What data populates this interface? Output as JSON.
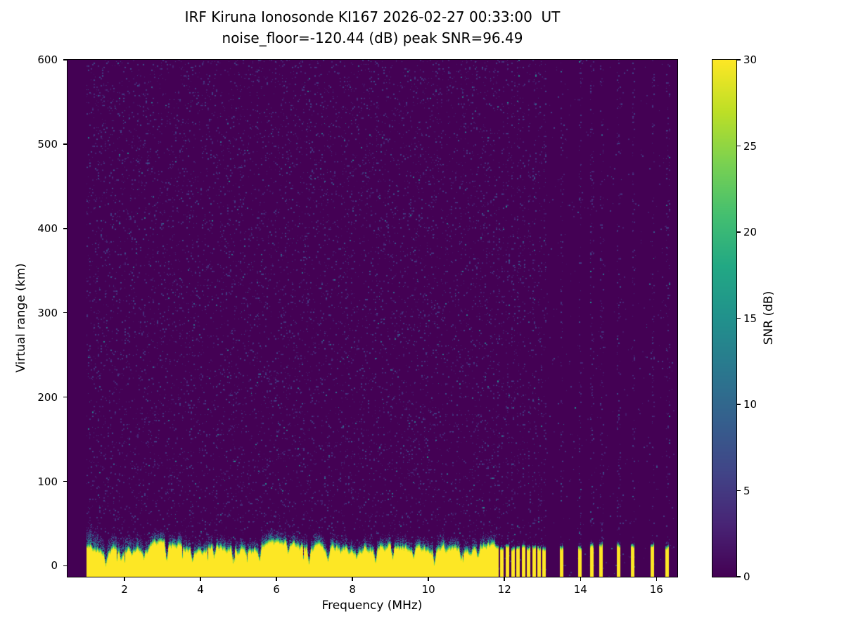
{
  "title_line1": "IRF Kiruna Ionosonde KI167 2026-02-27 00:33:00  UT",
  "title_line2": "noise_floor=-120.44 (dB) peak SNR=96.49",
  "axes": {
    "xlabel": "Frequency (MHz)",
    "ylabel": "Virtual range (km)",
    "xticks": [
      2,
      4,
      6,
      8,
      10,
      12,
      14,
      16
    ],
    "yticks": [
      0,
      100,
      200,
      300,
      400,
      500,
      600
    ]
  },
  "colorbar": {
    "label": "SNR (dB)",
    "min": 0,
    "max": 30,
    "ticks": [
      0,
      5,
      10,
      15,
      20,
      25,
      30
    ]
  },
  "chart_data": {
    "type": "heatmap",
    "title": "IRF Kiruna Ionosonde KI167 2026-02-27 00:33:00  UT",
    "subtitle": "noise_floor=-120.44 (dB) peak SNR=96.49",
    "xlabel": "Frequency (MHz)",
    "ylabel": "Virtual range (km)",
    "zlabel": "SNR (dB)",
    "xlim": [
      0.5,
      16.55
    ],
    "ylim": [
      -13,
      600
    ],
    "zlim": [
      0,
      30
    ],
    "grid": false,
    "legend": "colorbar-right",
    "noise_floor_db": -120.44,
    "peak_snr_db": 96.49,
    "data_range_mhz": [
      1.0,
      16.45
    ],
    "color_scale": {
      "name": "viridis",
      "min": 0,
      "max": 30,
      "background": "#440154",
      "peak": "#fde725",
      "stops": [
        "#440154",
        "#482475",
        "#414487",
        "#355f8d",
        "#2a788e",
        "#21918c",
        "#22a884",
        "#44bf70",
        "#7ad151",
        "#bddf26",
        "#fde725"
      ]
    },
    "background_noise": {
      "density": 0.09,
      "snr_db_range": [
        1,
        12
      ],
      "right_region_density": 0.012
    },
    "ground_echo_band": {
      "freq_mhz": [
        1.0,
        11.72
      ],
      "range_km": [
        -13,
        30
      ],
      "fringe_km": 13,
      "snr_db": 30,
      "notch_freqs_mhz": [
        1.5,
        1.9,
        2.5,
        3.1,
        3.78,
        4.35,
        4.85,
        5.55,
        6.3,
        6.85,
        7.35,
        8.1,
        8.6,
        9.05,
        9.6,
        10.15,
        10.85,
        11.3
      ]
    },
    "echo_stripes": {
      "comb_mhz": [
        11.8,
        11.94,
        12.08,
        12.22,
        12.36,
        12.5,
        12.64,
        12.78,
        12.92,
        13.05
      ],
      "isolated_mhz": [
        13.5,
        13.98,
        14.3,
        14.55,
        15.0,
        15.38,
        15.9,
        16.28
      ],
      "stripe_width_mhz": 0.075,
      "range_km": [
        -13,
        25
      ],
      "snr_db": 30
    },
    "seed": 167
  }
}
